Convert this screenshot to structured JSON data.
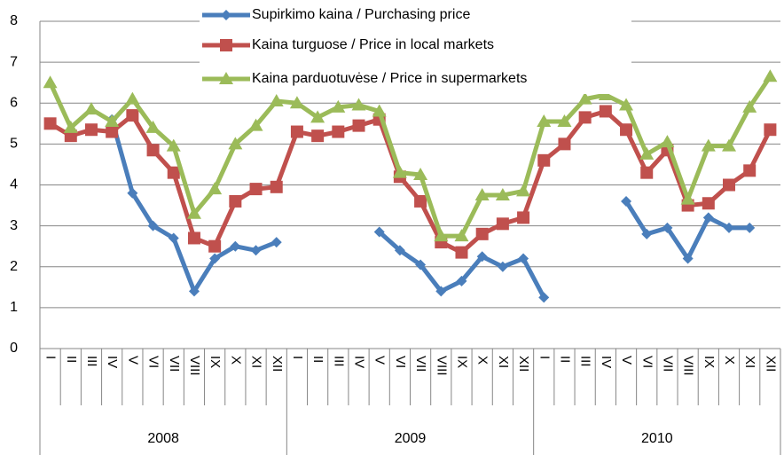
{
  "chart_data": {
    "type": "line",
    "categories": [
      "I",
      "II",
      "III",
      "IV",
      "V",
      "VI",
      "VII",
      "VIII",
      "IX",
      "X",
      "XI",
      "XII",
      "I",
      "II",
      "III",
      "IV",
      "V",
      "VI",
      "VII",
      "VIII",
      "IX",
      "X",
      "XI",
      "XII",
      "I",
      "II",
      "III",
      "IV",
      "V",
      "VI",
      "VII",
      "VIII",
      "IX",
      "X",
      "XI",
      "XII"
    ],
    "category_groups": [
      "2008",
      "2009",
      "2010"
    ],
    "series": [
      {
        "name": "Supirkimo kaina / Purchasing price",
        "color": "#4a7ebb",
        "marker": "diamond",
        "values": [
          null,
          null,
          null,
          5.6,
          3.8,
          3.0,
          2.7,
          1.4,
          2.2,
          2.5,
          2.4,
          2.6,
          null,
          null,
          null,
          null,
          2.85,
          2.4,
          2.05,
          1.4,
          1.65,
          2.25,
          2.0,
          2.2,
          1.25,
          null,
          null,
          null,
          3.6,
          2.8,
          2.95,
          2.2,
          3.2,
          2.95,
          2.95,
          null
        ]
      },
      {
        "name": "Kaina turguose / Price in local markets",
        "color": "#c0504d",
        "marker": "square",
        "values": [
          5.5,
          5.2,
          5.35,
          5.3,
          5.7,
          4.85,
          4.3,
          2.7,
          2.5,
          3.6,
          3.9,
          3.95,
          5.3,
          5.2,
          5.3,
          5.45,
          5.6,
          4.2,
          3.6,
          2.6,
          2.35,
          2.8,
          3.05,
          3.2,
          4.6,
          5.0,
          5.65,
          5.8,
          5.35,
          4.3,
          4.85,
          3.5,
          3.55,
          4.0,
          4.35,
          5.35
        ]
      },
      {
        "name": "Kaina parduotuvėse / Price in supermarkets",
        "color": "#9bbb59",
        "marker": "triangle",
        "values": [
          6.5,
          5.4,
          5.85,
          5.55,
          6.1,
          5.4,
          4.95,
          3.3,
          3.9,
          5.0,
          5.45,
          6.05,
          6.0,
          5.65,
          5.9,
          5.95,
          5.8,
          4.3,
          4.25,
          2.75,
          2.75,
          3.75,
          3.75,
          3.85,
          5.55,
          5.55,
          6.1,
          6.2,
          5.95,
          4.75,
          5.05,
          3.65,
          4.95,
          4.95,
          5.9,
          6.65
        ]
      }
    ],
    "ylim": [
      0,
      8
    ],
    "yticks": [
      0,
      1,
      2,
      3,
      4,
      5,
      6,
      7,
      8
    ],
    "grid": true
  }
}
